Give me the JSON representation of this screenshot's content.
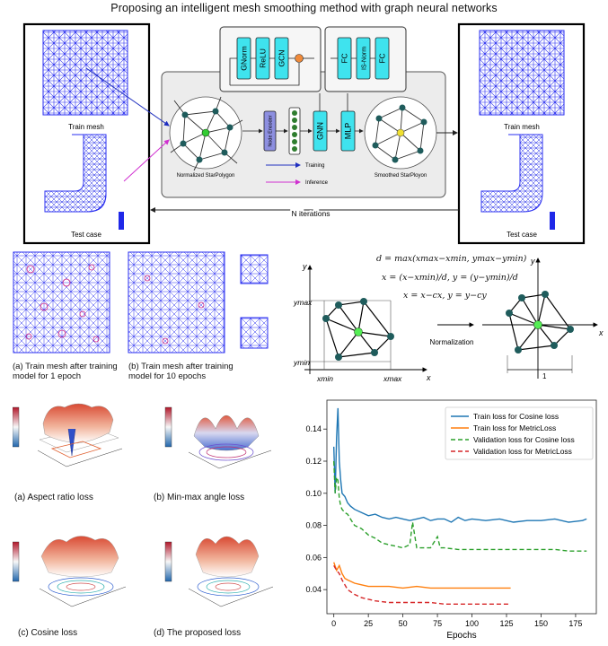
{
  "title": "Proposing an intelligent mesh smoothing method with graph neural networks",
  "pipeline": {
    "left_top_label": "Train mesh",
    "left_bottom_label": "Test case",
    "right_top_label": "Train mesh",
    "right_bottom_label": "Test case",
    "iterations_label": "N iterations",
    "blocks": {
      "gnorm": "GNorm",
      "relu": "ReLU",
      "gcn": "GCN",
      "fc1": "FC",
      "isnorm": "IS-Norm",
      "fc2": "FC",
      "node_encoder": "Node Encoder",
      "gnn": "GNN",
      "mlp": "MLP"
    },
    "normalized_label": "Normalized StarPolygon",
    "smoothed_label": "Smoothed StarPloyon",
    "legend_training": "Training",
    "legend_inference": "Inference",
    "colors": {
      "training": "#1f2fbf",
      "inference": "#d030d0",
      "cyan_block": "#3fe3ee",
      "node_encoder": "#8d8fe0"
    }
  },
  "meshes": {
    "caption_a": "(a)  Train  mesh  after training  model  for  1 epoch",
    "caption_b": "(b) Train mesh after training model for 10 epochs"
  },
  "normalization": {
    "eq1": "d = max(xmax−xmin, ymax−ymin)",
    "eq2": "x = (x−xmin)/d, y = (y−ymin)/d",
    "eq3": "x = x−cx, y = y−cy",
    "axis_x": "x",
    "axis_y": "y",
    "ymax": "ymax",
    "ymin": "ymin",
    "xmin": "xmin",
    "xmax": "xmax",
    "arrow_label": "Normalization",
    "unit_label": "1"
  },
  "loss_surfaces": {
    "a": "(a) Aspect ratio loss",
    "b": "(b) Min-max angle loss",
    "c": "(c) Cosine loss",
    "d": "(d) The proposed loss"
  },
  "chart_data": {
    "type": "line",
    "xlabel": "Epochs",
    "ylabel": "",
    "xlim": [
      -5,
      190
    ],
    "ylim": [
      0.025,
      0.158
    ],
    "xticks": [
      0,
      25,
      50,
      75,
      100,
      125,
      150,
      175
    ],
    "yticks": [
      0.04,
      0.06,
      0.08,
      0.1,
      0.12,
      0.14
    ],
    "ytick_labels": [
      "0.04",
      "0.06",
      "0.08",
      "0.10",
      "0.12",
      "0.14"
    ],
    "legend_position": "top-right",
    "series": [
      {
        "name": "Train loss for Cosine loss",
        "color": "#1f77b4",
        "dash": "solid",
        "x": [
          0,
          1,
          2,
          3,
          4,
          5,
          6,
          8,
          10,
          12,
          15,
          20,
          25,
          30,
          35,
          40,
          45,
          50,
          55,
          60,
          65,
          70,
          75,
          80,
          85,
          90,
          95,
          100,
          110,
          120,
          130,
          140,
          150,
          160,
          170,
          180,
          183
        ],
        "y": [
          0.129,
          0.1,
          0.135,
          0.153,
          0.12,
          0.108,
          0.1,
          0.098,
          0.094,
          0.092,
          0.09,
          0.088,
          0.086,
          0.087,
          0.085,
          0.084,
          0.085,
          0.084,
          0.083,
          0.084,
          0.085,
          0.083,
          0.084,
          0.084,
          0.082,
          0.085,
          0.083,
          0.084,
          0.083,
          0.084,
          0.082,
          0.083,
          0.083,
          0.084,
          0.082,
          0.083,
          0.084
        ]
      },
      {
        "name": "Train loss for MetricLoss",
        "color": "#ff7f0e",
        "dash": "solid",
        "x": [
          0,
          2,
          4,
          6,
          8,
          10,
          15,
          20,
          25,
          30,
          40,
          50,
          60,
          70,
          80,
          90,
          100,
          110,
          120,
          128
        ],
        "y": [
          0.057,
          0.052,
          0.055,
          0.05,
          0.047,
          0.046,
          0.044,
          0.043,
          0.042,
          0.042,
          0.042,
          0.041,
          0.042,
          0.041,
          0.041,
          0.041,
          0.041,
          0.041,
          0.041,
          0.041
        ]
      },
      {
        "name": "Validation loss for Cosine loss",
        "color": "#2ca02c",
        "dash": "dashed",
        "x": [
          0,
          1,
          2,
          3,
          4,
          5,
          6,
          8,
          10,
          12,
          15,
          20,
          25,
          30,
          35,
          40,
          45,
          50,
          55,
          57,
          60,
          65,
          70,
          75,
          77,
          80,
          90,
          100,
          110,
          120,
          130,
          140,
          150,
          160,
          170,
          180,
          183
        ],
        "y": [
          0.12,
          0.1,
          0.11,
          0.108,
          0.097,
          0.092,
          0.09,
          0.088,
          0.087,
          0.084,
          0.08,
          0.078,
          0.074,
          0.072,
          0.069,
          0.068,
          0.067,
          0.066,
          0.068,
          0.082,
          0.066,
          0.066,
          0.066,
          0.073,
          0.066,
          0.066,
          0.065,
          0.065,
          0.065,
          0.065,
          0.065,
          0.065,
          0.065,
          0.065,
          0.064,
          0.064,
          0.064
        ]
      },
      {
        "name": "Validation loss for MetricLoss",
        "color": "#d62728",
        "dash": "dashed",
        "x": [
          0,
          2,
          4,
          6,
          8,
          10,
          15,
          20,
          25,
          30,
          40,
          50,
          60,
          70,
          80,
          90,
          100,
          110,
          120,
          128
        ],
        "y": [
          0.055,
          0.052,
          0.05,
          0.046,
          0.043,
          0.04,
          0.037,
          0.035,
          0.034,
          0.033,
          0.032,
          0.032,
          0.032,
          0.032,
          0.031,
          0.031,
          0.031,
          0.031,
          0.031,
          0.031
        ]
      }
    ]
  }
}
